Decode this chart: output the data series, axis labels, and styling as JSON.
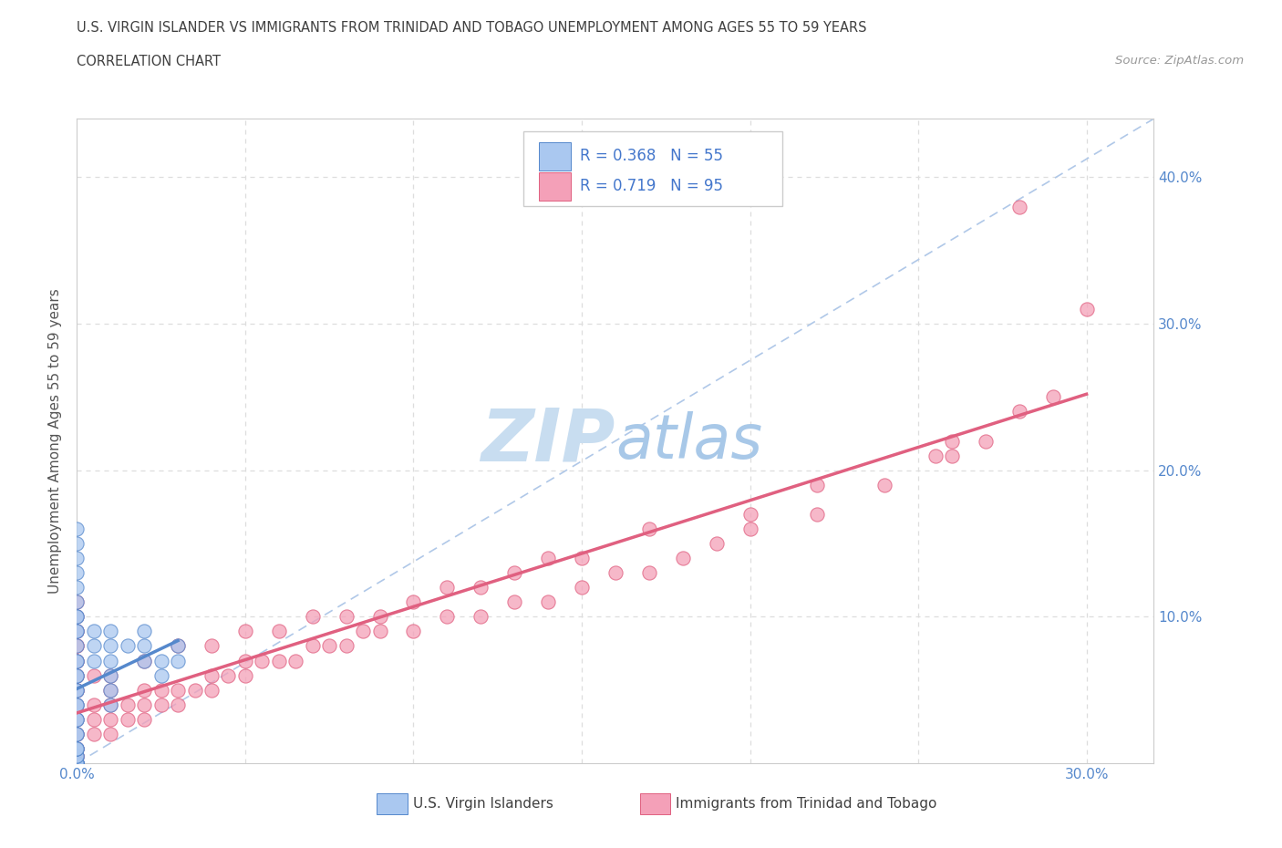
{
  "title_line1": "U.S. VIRGIN ISLANDER VS IMMIGRANTS FROM TRINIDAD AND TOBAGO UNEMPLOYMENT AMONG AGES 55 TO 59 YEARS",
  "title_line2": "CORRELATION CHART",
  "source_text": "Source: ZipAtlas.com",
  "ylabel": "Unemployment Among Ages 55 to 59 years",
  "xlim": [
    0.0,
    0.32
  ],
  "ylim": [
    0.0,
    0.44
  ],
  "xticks": [
    0.0,
    0.05,
    0.1,
    0.15,
    0.2,
    0.25,
    0.3
  ],
  "yticks": [
    0.0,
    0.1,
    0.2,
    0.3,
    0.4
  ],
  "xticklabels": [
    "0.0%",
    "",
    "",
    "",
    "",
    "",
    "30.0%"
  ],
  "yticklabels": [
    "",
    "10.0%",
    "20.0%",
    "30.0%",
    "40.0%"
  ],
  "blue_R": 0.368,
  "blue_N": 55,
  "pink_R": 0.719,
  "pink_N": 95,
  "blue_color": "#aac8f0",
  "pink_color": "#f4a0b8",
  "blue_line_color": "#5588cc",
  "pink_line_color": "#e06080",
  "dashed_line_color": "#b0c8e8",
  "watermark_color": "#c8ddf0",
  "legend_R_color": "#4477cc",
  "background_color": "#ffffff",
  "grid_color": "#dddddd",
  "title_color": "#404040",
  "axis_label_color": "#5588cc",
  "blue_scatter_x": [
    0.0,
    0.0,
    0.0,
    0.0,
    0.0,
    0.0,
    0.0,
    0.0,
    0.0,
    0.0,
    0.0,
    0.0,
    0.0,
    0.0,
    0.0,
    0.0,
    0.0,
    0.0,
    0.0,
    0.0,
    0.0,
    0.0,
    0.0,
    0.0,
    0.0,
    0.0,
    0.0,
    0.0,
    0.0,
    0.0,
    0.0,
    0.0,
    0.0,
    0.005,
    0.005,
    0.005,
    0.01,
    0.01,
    0.01,
    0.01,
    0.01,
    0.01,
    0.015,
    0.02,
    0.02,
    0.02,
    0.025,
    0.025,
    0.03,
    0.03,
    0.0,
    0.0,
    0.0,
    0.0,
    0.0
  ],
  "blue_scatter_y": [
    0.0,
    0.0,
    0.0,
    0.0,
    0.0,
    0.0,
    0.0,
    0.0,
    0.0,
    0.0,
    0.005,
    0.005,
    0.01,
    0.01,
    0.01,
    0.02,
    0.02,
    0.03,
    0.03,
    0.04,
    0.04,
    0.05,
    0.05,
    0.06,
    0.06,
    0.07,
    0.07,
    0.08,
    0.09,
    0.09,
    0.1,
    0.1,
    0.11,
    0.07,
    0.08,
    0.09,
    0.04,
    0.05,
    0.06,
    0.07,
    0.08,
    0.09,
    0.08,
    0.07,
    0.08,
    0.09,
    0.06,
    0.07,
    0.07,
    0.08,
    0.12,
    0.13,
    0.14,
    0.15,
    0.16
  ],
  "pink_scatter_x": [
    0.0,
    0.0,
    0.0,
    0.0,
    0.0,
    0.0,
    0.0,
    0.0,
    0.0,
    0.0,
    0.0,
    0.0,
    0.0,
    0.0,
    0.0,
    0.0,
    0.0,
    0.0,
    0.0,
    0.0,
    0.005,
    0.005,
    0.005,
    0.01,
    0.01,
    0.01,
    0.01,
    0.015,
    0.015,
    0.02,
    0.02,
    0.02,
    0.025,
    0.025,
    0.03,
    0.03,
    0.035,
    0.04,
    0.04,
    0.045,
    0.05,
    0.05,
    0.055,
    0.06,
    0.065,
    0.07,
    0.075,
    0.08,
    0.085,
    0.09,
    0.1,
    0.11,
    0.12,
    0.13,
    0.14,
    0.15,
    0.16,
    0.17,
    0.18,
    0.19,
    0.2,
    0.22,
    0.24,
    0.26,
    0.27,
    0.0,
    0.0,
    0.0,
    0.0,
    0.0,
    0.005,
    0.01,
    0.02,
    0.03,
    0.04,
    0.05,
    0.06,
    0.07,
    0.08,
    0.09,
    0.1,
    0.11,
    0.12,
    0.13,
    0.14,
    0.15,
    0.17,
    0.2,
    0.22,
    0.255,
    0.26,
    0.28,
    0.29,
    0.3,
    0.28
  ],
  "pink_scatter_y": [
    0.0,
    0.0,
    0.0,
    0.0,
    0.0,
    0.005,
    0.005,
    0.01,
    0.01,
    0.02,
    0.02,
    0.03,
    0.04,
    0.05,
    0.06,
    0.07,
    0.08,
    0.09,
    0.1,
    0.11,
    0.02,
    0.03,
    0.04,
    0.02,
    0.03,
    0.04,
    0.05,
    0.03,
    0.04,
    0.03,
    0.04,
    0.05,
    0.04,
    0.05,
    0.04,
    0.05,
    0.05,
    0.05,
    0.06,
    0.06,
    0.06,
    0.07,
    0.07,
    0.07,
    0.07,
    0.08,
    0.08,
    0.08,
    0.09,
    0.09,
    0.09,
    0.1,
    0.1,
    0.11,
    0.11,
    0.12,
    0.13,
    0.13,
    0.14,
    0.15,
    0.16,
    0.17,
    0.19,
    0.21,
    0.22,
    0.05,
    0.06,
    0.07,
    0.08,
    0.09,
    0.06,
    0.06,
    0.07,
    0.08,
    0.08,
    0.09,
    0.09,
    0.1,
    0.1,
    0.1,
    0.11,
    0.12,
    0.12,
    0.13,
    0.14,
    0.14,
    0.16,
    0.17,
    0.19,
    0.21,
    0.22,
    0.24,
    0.25,
    0.31,
    0.38
  ]
}
